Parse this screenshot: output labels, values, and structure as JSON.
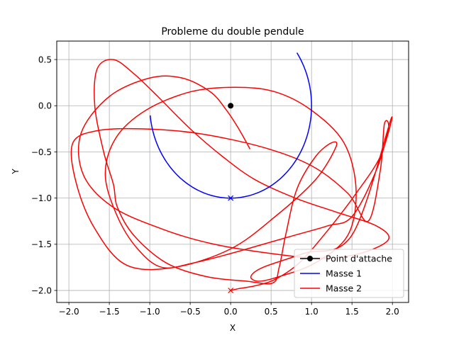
{
  "chart_data": {
    "type": "line",
    "title": "Probleme du double pendule",
    "xlabel": "X",
    "ylabel": "Y",
    "xlim": [
      -2.15,
      2.2
    ],
    "ylim": [
      -2.13,
      0.7
    ],
    "xticks": [
      -2.0,
      -1.5,
      -1.0,
      -0.5,
      0.0,
      0.5,
      1.0,
      1.5,
      2.0
    ],
    "xtick_labels": [
      "−2.0",
      "−1.5",
      "−1.0",
      "−0.5",
      "0.0",
      "0.5",
      "1.0",
      "1.5",
      "2.0"
    ],
    "yticks": [
      0.5,
      0.0,
      -0.5,
      -1.0,
      -1.5,
      -2.0
    ],
    "ytick_labels": [
      "0.5",
      "0.0",
      "−0.5",
      "−1.0",
      "−1.5",
      "−2.0"
    ],
    "grid": true,
    "legend_position": "lower-right",
    "series": [
      {
        "name": "Point d'attache",
        "color": "#000000",
        "marker": "circle",
        "x": [
          0.0
        ],
        "y": [
          0.0
        ]
      },
      {
        "name": "Masse 1",
        "color": "#0000ff",
        "curve": "arc",
        "radius": 1.0,
        "angle_from_deg": -174,
        "angle_to_deg": 35,
        "end_marker": "x",
        "end_marker_at": [
          0.0,
          -1.0
        ]
      },
      {
        "name": "Masse 2",
        "color": "#ff0000",
        "end_marker": "x",
        "end_marker_at": [
          0.0,
          -2.0
        ],
        "x": [
          0.24,
          0.1,
          -0.05,
          -0.25,
          -0.6,
          -1.0,
          -1.5,
          -1.85,
          -1.82,
          -1.45,
          -0.8,
          -0.2,
          0.5,
          1.1,
          1.6,
          1.95,
          1.8,
          1.3,
          0.8,
          0.3,
          -0.1,
          -0.5,
          -0.9,
          -1.2,
          -1.45,
          -1.65,
          -1.68,
          -1.57,
          -1.45,
          -1.4,
          -1.2,
          -0.8,
          -0.3,
          0.2,
          0.52,
          0.6,
          0.68,
          0.82,
          1.05,
          1.25,
          1.3,
          1.05,
          0.55,
          0.0,
          -0.7,
          -1.3,
          -1.7,
          -1.92,
          -1.95,
          -1.65,
          -1.1,
          -0.4,
          0.4,
          1.0,
          1.45,
          1.7,
          1.85,
          1.9,
          1.95,
          1.8,
          1.5,
          1.2,
          0.8,
          0.4,
          0.0,
          -0.45,
          -0.85,
          -1.15,
          -1.4,
          -1.55,
          -1.42,
          -1.05,
          -0.5,
          0.05,
          0.55,
          1.0,
          1.4,
          1.55,
          1.45,
          1.05,
          0.6,
          0.35,
          0.25,
          0.4,
          0.9,
          1.5,
          1.98,
          1.85,
          1.55,
          1.2,
          0.85,
          0.55,
          0.3,
          0.1,
          0.0
        ],
        "y": [
          -0.47,
          -0.25,
          -0.05,
          0.15,
          0.3,
          0.3,
          0.1,
          -0.3,
          -0.75,
          -1.1,
          -1.35,
          -1.5,
          -1.6,
          -1.65,
          -1.6,
          -1.45,
          -1.3,
          -1.15,
          -1.0,
          -0.8,
          -0.55,
          -0.25,
          0.1,
          0.35,
          0.5,
          0.4,
          0.0,
          -0.5,
          -0.85,
          -1.1,
          -1.4,
          -1.7,
          -1.85,
          -1.9,
          -1.92,
          -1.75,
          -1.4,
          -0.9,
          -0.55,
          -0.4,
          -0.45,
          -0.8,
          -1.2,
          -1.55,
          -1.75,
          -1.72,
          -1.3,
          -0.8,
          -0.4,
          -0.27,
          -0.25,
          -0.3,
          -0.45,
          -0.65,
          -0.95,
          -1.25,
          -0.7,
          -0.2,
          -0.25,
          -0.7,
          -1.2,
          -1.3,
          -1.4,
          -1.5,
          -1.6,
          -1.7,
          -1.75,
          -1.55,
          -1.2,
          -0.75,
          -0.35,
          -0.05,
          0.15,
          0.2,
          0.15,
          -0.05,
          -0.4,
          -0.9,
          -1.4,
          -1.7,
          -1.85,
          -1.9,
          -1.85,
          -1.75,
          -1.6,
          -1.4,
          -0.15,
          -0.55,
          -0.95,
          -1.35,
          -1.7,
          -1.88,
          -1.95,
          -1.98,
          -2.0
        ]
      }
    ]
  }
}
